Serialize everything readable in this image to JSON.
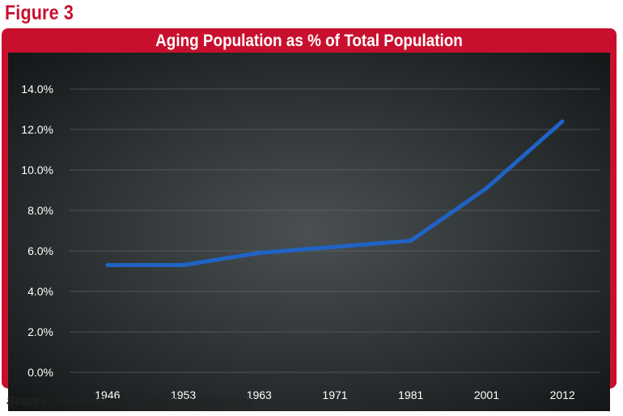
{
  "figure_label": "Figure 3",
  "source": {
    "label": "Source:",
    "text": "Department of Census and Statistics"
  },
  "colors": {
    "frame": "#c8102e",
    "line": "#1f63c6",
    "panel_center": "#4a5052",
    "panel_edge": "#141718",
    "text": "#ffffff"
  },
  "chart_data": {
    "type": "line",
    "title": "Aging Population as % of Total Population",
    "xlabel": "",
    "ylabel": "",
    "categories": [
      "1946",
      "1953",
      "1963",
      "1971",
      "1981",
      "2001",
      "2012"
    ],
    "series": [
      {
        "values": [
          5.3,
          5.3,
          5.9,
          6.2,
          6.5,
          9.1,
          12.4
        ]
      }
    ],
    "ylim": [
      0,
      14
    ],
    "y_ticks": [
      "0.0%",
      "2.0%",
      "4.0%",
      "6.0%",
      "8.0%",
      "10.0%",
      "12.0%",
      "14.0%"
    ],
    "grid": true,
    "legend": "none"
  }
}
